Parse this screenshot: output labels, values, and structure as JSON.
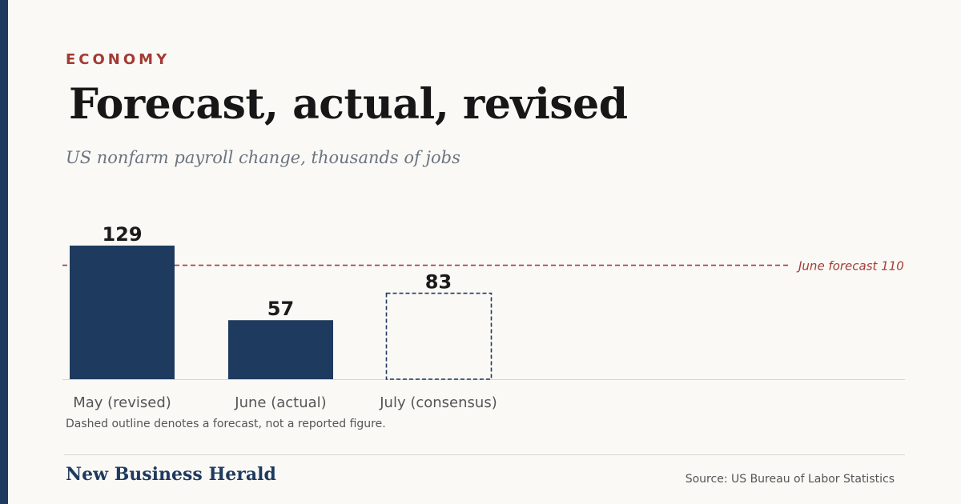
{
  "kicker": "ECONOMY",
  "headline": "Forecast, actual, revised",
  "subtitle": "US nonfarm payroll change, thousands of jobs",
  "footnote": "Dashed outline denotes a forecast, not a reported figure.",
  "brand": "New Business Herald",
  "source": "Source: US Bureau of Labor Statistics",
  "colors": {
    "bar": "#1f3a5f",
    "forecast_line": "#a23b34",
    "background": "#faf9f6"
  },
  "chart_data": {
    "type": "bar",
    "title": "Forecast, actual, revised",
    "categories": [
      "May (revised)",
      "June (actual)",
      "July (consensus)"
    ],
    "values": [
      129,
      57,
      83
    ],
    "value_labels": [
      "129",
      "57",
      "83"
    ],
    "forecast_flags": [
      false,
      false,
      true
    ],
    "reference_line": {
      "value": 110,
      "label": "June forecast 110"
    },
    "ylim": [
      0,
      129
    ],
    "grid": false,
    "xlabel": "",
    "ylabel": ""
  }
}
